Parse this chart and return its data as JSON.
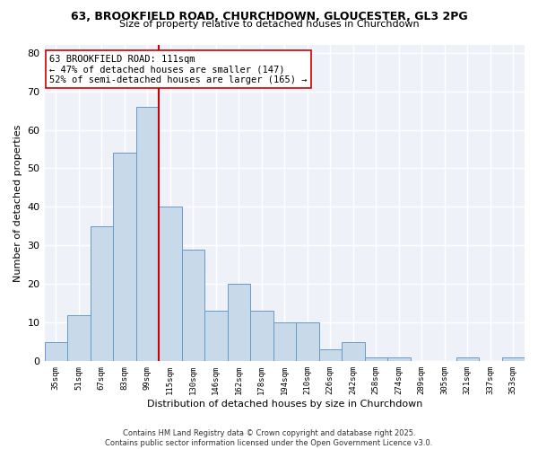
{
  "title_line1": "63, BROOKFIELD ROAD, CHURCHDOWN, GLOUCESTER, GL3 2PG",
  "title_line2": "Size of property relative to detached houses in Churchdown",
  "xlabel": "Distribution of detached houses by size in Churchdown",
  "ylabel": "Number of detached properties",
  "bar_color": "#c8d9ea",
  "bar_edge_color": "#6699cc",
  "background_color": "#ffffff",
  "plot_bg_color": "#eef2f8",
  "grid_color": "#ffffff",
  "vline_color": "#cc0000",
  "annotation_text": "63 BROOKFIELD ROAD: 111sqm\n← 47% of detached houses are smaller (147)\n52% of semi-detached houses are larger (165) →",
  "annotation_box_color": "#ffffff",
  "annotation_box_edge": "#cc0000",
  "categories": [
    "35sqm",
    "51sqm",
    "67sqm",
    "83sqm",
    "99sqm",
    "115sqm",
    "130sqm",
    "146sqm",
    "162sqm",
    "178sqm",
    "194sqm",
    "210sqm",
    "226sqm",
    "242sqm",
    "258sqm",
    "274sqm",
    "289sqm",
    "305sqm",
    "321sqm",
    "337sqm",
    "353sqm"
  ],
  "values": [
    5,
    12,
    35,
    54,
    66,
    40,
    29,
    13,
    20,
    13,
    10,
    10,
    3,
    5,
    1,
    1,
    0,
    0,
    1,
    0,
    1
  ],
  "ylim": [
    0,
    82
  ],
  "yticks": [
    0,
    10,
    20,
    30,
    40,
    50,
    60,
    70,
    80
  ],
  "copyright_text": "Contains HM Land Registry data © Crown copyright and database right 2025.\nContains public sector information licensed under the Open Government Licence v3.0.",
  "bar_width": 1.0,
  "vline_idx": 4.5
}
